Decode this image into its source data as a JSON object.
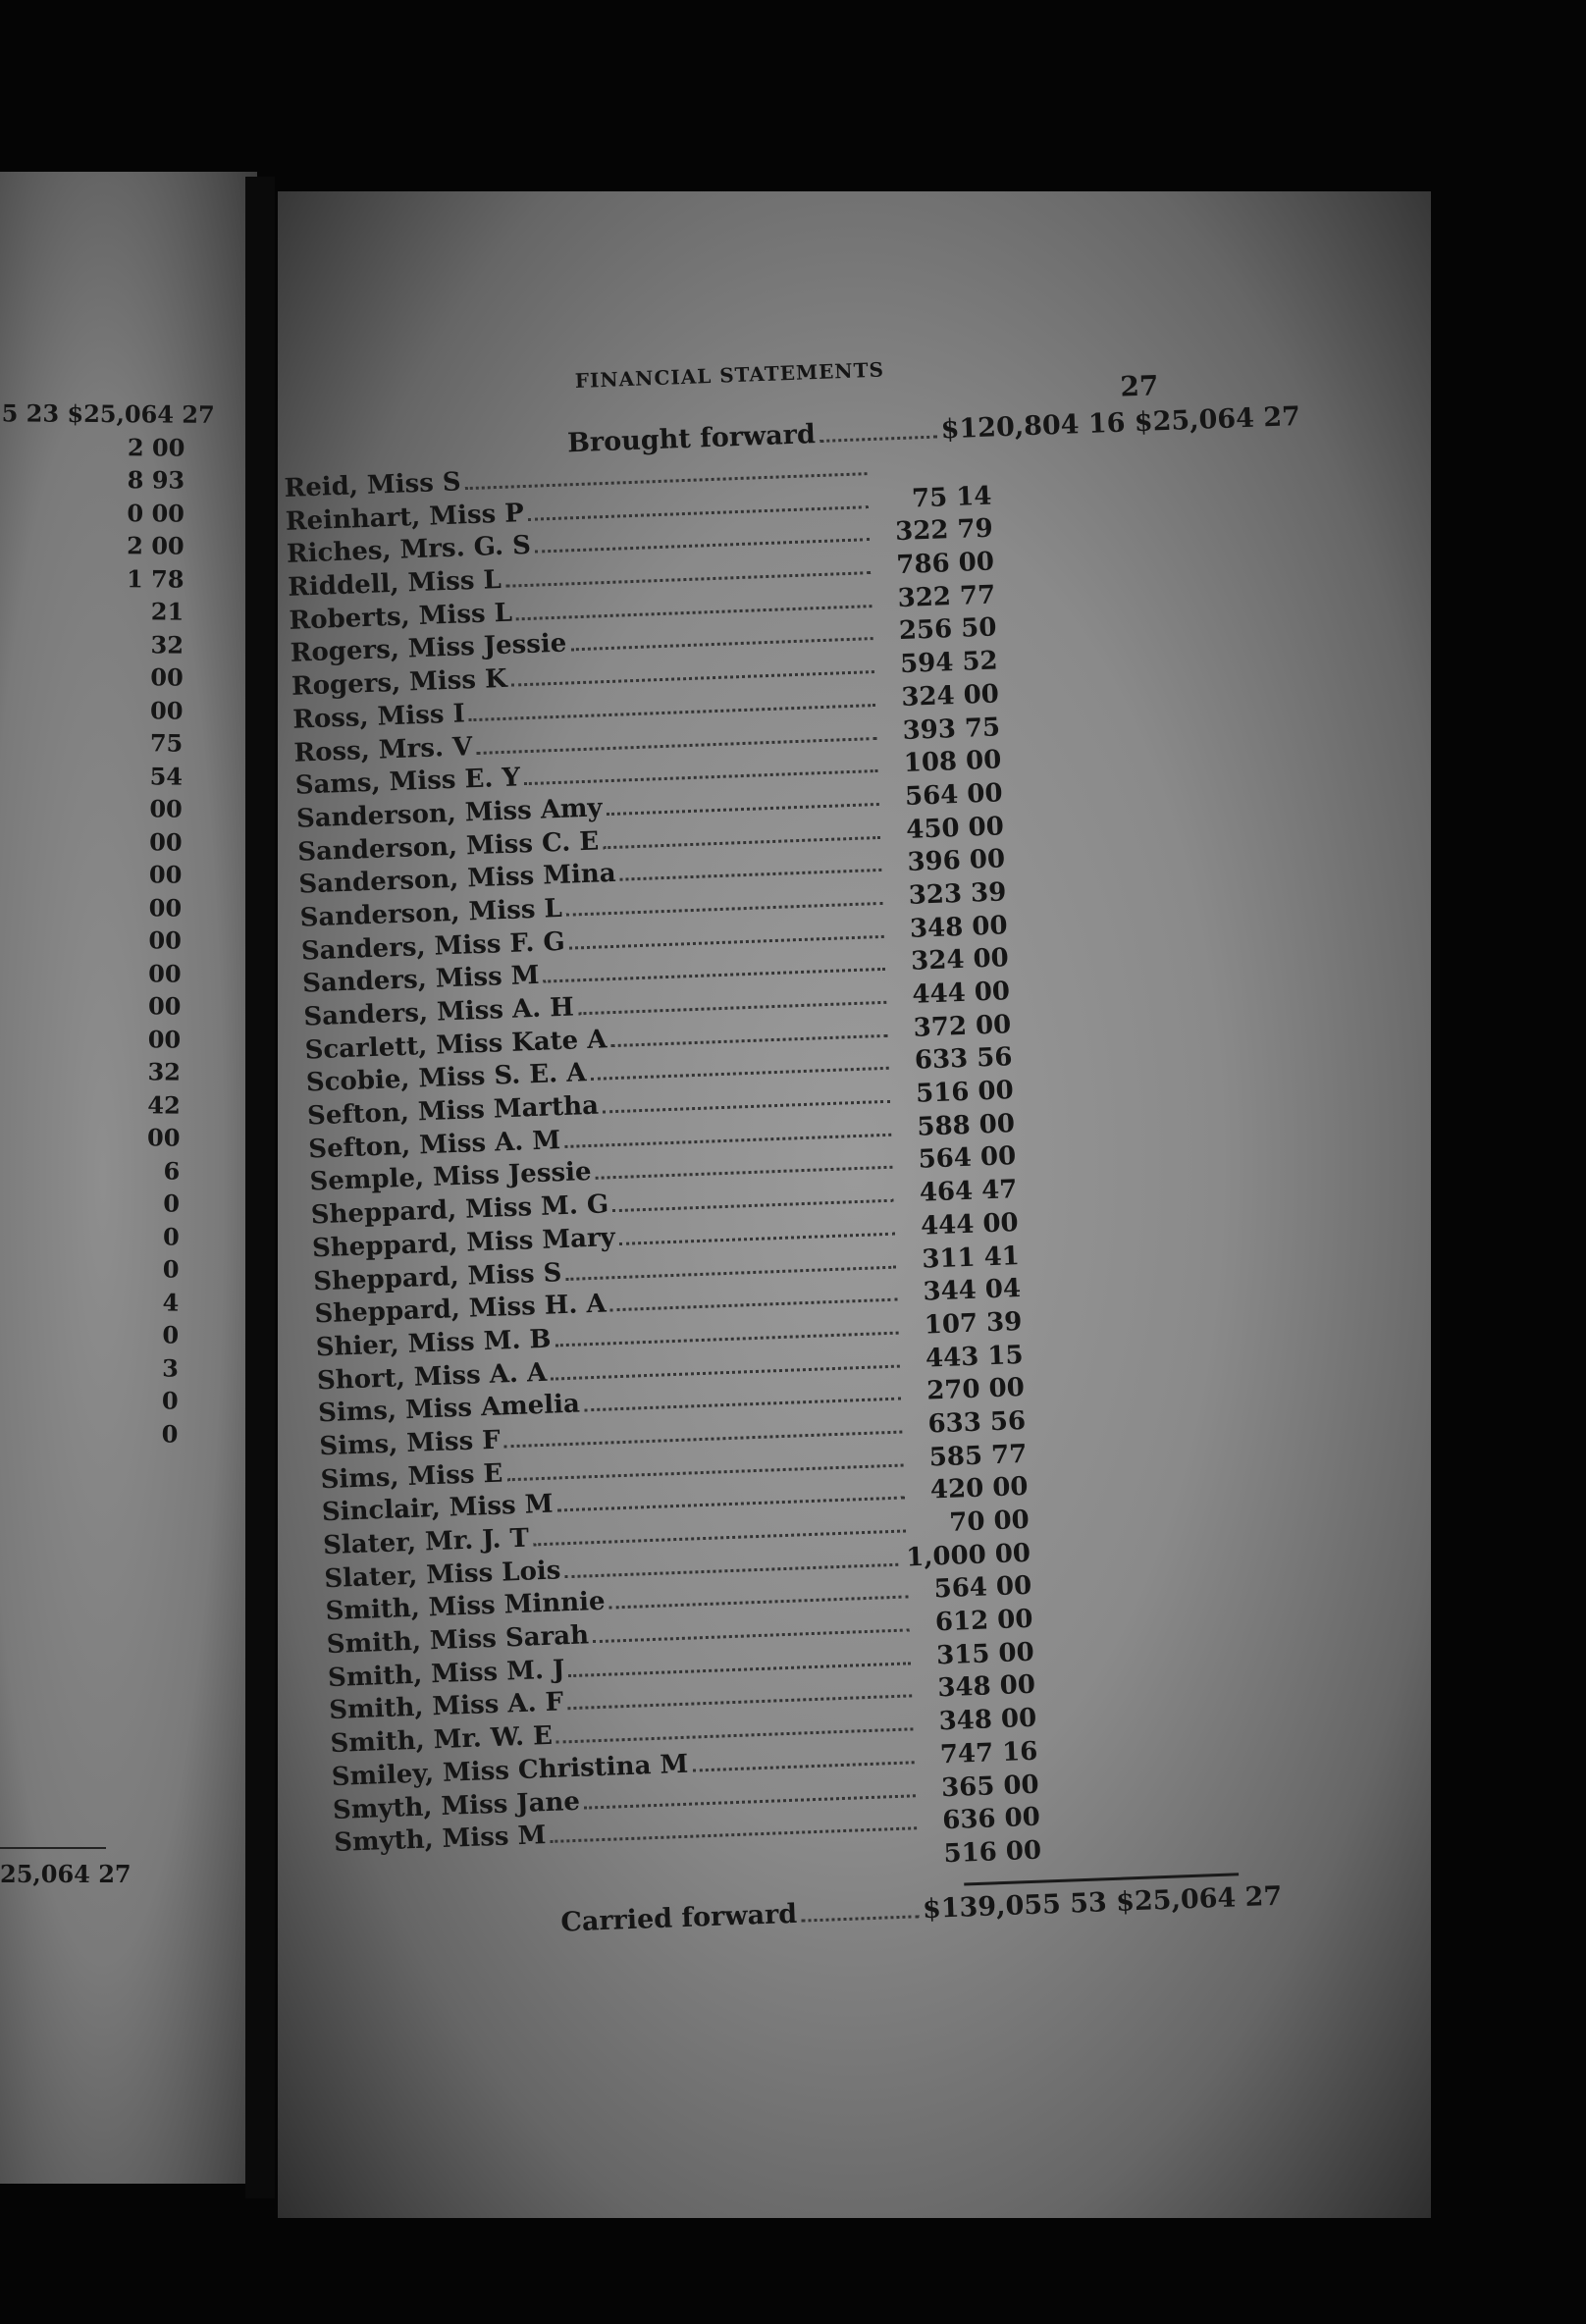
{
  "left_page": {
    "top_line": "5 23 $25,064 27",
    "fragments": [
      "2 00",
      "8 93",
      "0 00",
      "2 00",
      "1 78",
      "21",
      "32",
      "00",
      "00",
      "75",
      "54",
      "00",
      "00",
      "00",
      "00",
      "00",
      "00",
      "00",
      "00",
      "32",
      "42",
      "00",
      "6",
      "0",
      "0",
      "0",
      "4",
      "0",
      "3",
      "0",
      "0"
    ],
    "bottom_total": "25,064 27"
  },
  "header": {
    "title": "FINANCIAL STATEMENTS",
    "page_number": "27"
  },
  "brought_forward": {
    "label": "Brought forward",
    "amount": "$120,804 16",
    "total": "$25,064 27"
  },
  "rows": [
    {
      "name": "Reid, Miss S",
      "amount": ""
    },
    {
      "name": "Reinhart, Miss P",
      "amount": "75 14"
    },
    {
      "name": "Riches, Mrs. G. S",
      "amount": "322 79"
    },
    {
      "name": "Riddell, Miss L",
      "amount": "786 00"
    },
    {
      "name": "Roberts, Miss L",
      "amount": "322 77"
    },
    {
      "name": "Rogers, Miss Jessie",
      "amount": "256 50"
    },
    {
      "name": "Rogers, Miss K",
      "amount": "594 52"
    },
    {
      "name": "Ross, Miss I",
      "amount": "324 00"
    },
    {
      "name": "Ross, Mrs. V",
      "amount": "393 75"
    },
    {
      "name": "Sams, Miss E. Y",
      "amount": "108 00"
    },
    {
      "name": "Sanderson, Miss Amy",
      "amount": "564 00"
    },
    {
      "name": "Sanderson, Miss C. E",
      "amount": "450 00"
    },
    {
      "name": "Sanderson, Miss Mina",
      "amount": "396 00"
    },
    {
      "name": "Sanderson, Miss L",
      "amount": "323 39"
    },
    {
      "name": "Sanders, Miss F. G",
      "amount": "348 00"
    },
    {
      "name": "Sanders, Miss M",
      "amount": "324 00"
    },
    {
      "name": "Sanders, Miss A. H",
      "amount": "444 00"
    },
    {
      "name": "Scarlett, Miss Kate A",
      "amount": "372 00"
    },
    {
      "name": "Scobie, Miss S. E. A",
      "amount": "633 56"
    },
    {
      "name": "Sefton, Miss Martha",
      "amount": "516 00"
    },
    {
      "name": "Sefton, Miss A. M",
      "amount": "588 00"
    },
    {
      "name": "Semple, Miss Jessie",
      "amount": "564 00"
    },
    {
      "name": "Sheppard, Miss M. G",
      "amount": "464 47"
    },
    {
      "name": "Sheppard, Miss Mary",
      "amount": "444 00"
    },
    {
      "name": "Sheppard, Miss S",
      "amount": "311 41"
    },
    {
      "name": "Sheppard, Miss H. A",
      "amount": "344 04"
    },
    {
      "name": "Shier, Miss M. B",
      "amount": "107 39"
    },
    {
      "name": "Short, Miss A. A",
      "amount": "443 15"
    },
    {
      "name": "Sims, Miss Amelia",
      "amount": "270 00"
    },
    {
      "name": "Sims, Miss F",
      "amount": "633 56"
    },
    {
      "name": "Sims, Miss E",
      "amount": "585 77"
    },
    {
      "name": "Sinclair, Miss M",
      "amount": "420 00"
    },
    {
      "name": "Slater, Mr. J. T",
      "amount": "70 00"
    },
    {
      "name": "Slater, Miss Lois",
      "amount": "1,000 00"
    },
    {
      "name": "Smith, Miss Minnie",
      "amount": "564 00"
    },
    {
      "name": "Smith, Miss Sarah",
      "amount": "612 00"
    },
    {
      "name": "Smith, Miss M. J",
      "amount": "315 00"
    },
    {
      "name": "Smith, Miss A. F",
      "amount": "348 00"
    },
    {
      "name": "Smith, Mr. W. E",
      "amount": "348 00"
    },
    {
      "name": "Smiley, Miss Christina M",
      "amount": "747 16"
    },
    {
      "name": "Smyth, Miss Jane",
      "amount": "365 00"
    },
    {
      "name": "Smyth, Miss M",
      "amount": "636 00"
    },
    {
      "name": "",
      "amount": "516 00"
    }
  ],
  "carried_forward": {
    "label": "Carried forward",
    "amount": "$139,055 53",
    "total": "$25,064 27"
  }
}
